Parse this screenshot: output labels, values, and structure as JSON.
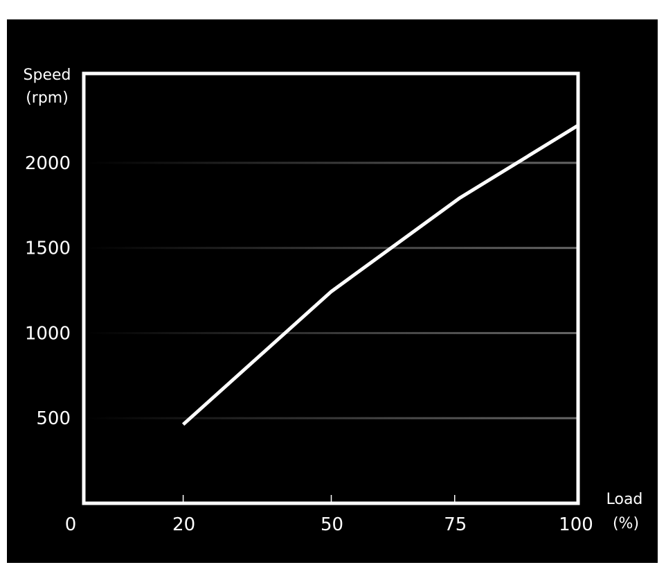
{
  "chart_data": {
    "type": "line",
    "title": "",
    "ylabel_lines": [
      "Speed",
      "(rpm)"
    ],
    "xlabel_lines": [
      "Load",
      "(%)"
    ],
    "xlim": [
      0,
      100
    ],
    "ylim": [
      0,
      2525
    ],
    "x_ticks": [
      0,
      20,
      50,
      75,
      100
    ],
    "x_tick_labels": [
      "0",
      "20",
      "50",
      "75",
      "100"
    ],
    "y_ticks": [
      500,
      1000,
      1500,
      2000
    ],
    "y_tick_labels": [
      "500",
      "1000",
      "1500",
      "2000"
    ],
    "grid": "horizontal",
    "series": [
      {
        "x": [
          20,
          50,
          76,
          100
        ],
        "y": [
          463,
          1244,
          1793,
          2220
        ]
      }
    ],
    "colors": {
      "background": "#000000",
      "line": "#ffffff",
      "frame": "#ffffff",
      "grid": "#555555"
    }
  }
}
